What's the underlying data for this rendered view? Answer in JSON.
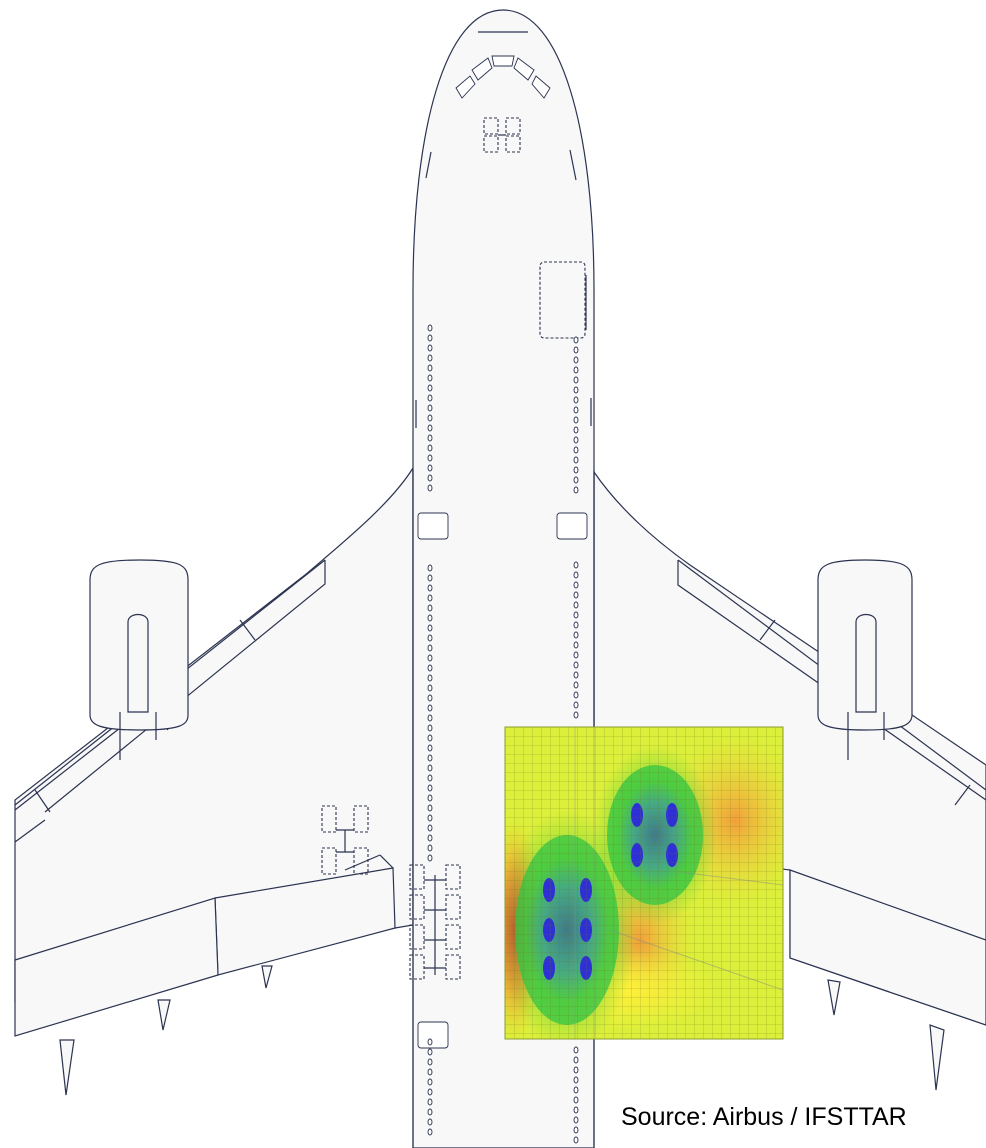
{
  "credit": {
    "text": "Source: Airbus / IFSTTAR"
  },
  "colors": {
    "outline": "#2b3350",
    "aircraft_fill": "#f8f8f9",
    "field_low": "#2f2fd8",
    "field_mid": "#32c832",
    "field_base": "#dff037",
    "field_high": "#e8402a"
  },
  "field": {
    "description_colormap": [
      "blue",
      "green",
      "yellow",
      "orange",
      "red"
    ]
  }
}
